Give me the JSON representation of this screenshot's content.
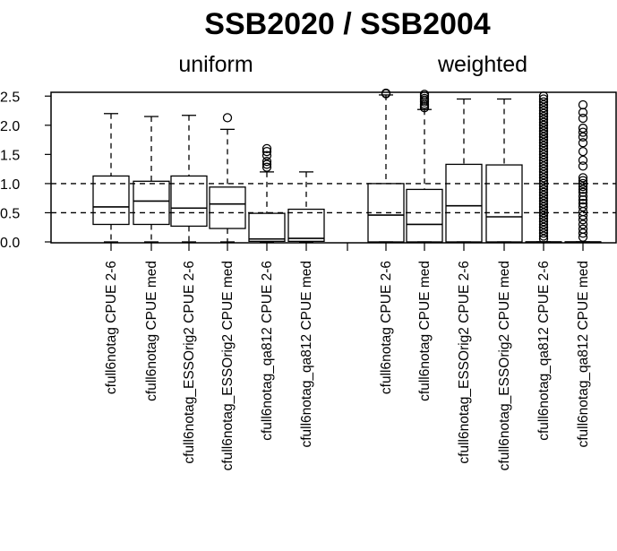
{
  "chart_data": {
    "type": "box",
    "title": "SSB2020 / SSB2004",
    "group_labels": [
      "uniform",
      "weighted"
    ],
    "y_ticks": [
      "0.0",
      "0.5",
      "1.0",
      "1.5",
      "2.0",
      "2.5"
    ],
    "ylim": [
      0,
      2.55
    ],
    "reference_lines": [
      0.5,
      1.0
    ],
    "grid": false,
    "boxes": [
      {
        "group": "uniform",
        "label": "cfull6notag CPUE 2-6",
        "min": 0.0,
        "q1": 0.3,
        "median": 0.6,
        "q3": 1.13,
        "max": 2.2,
        "outliers": []
      },
      {
        "group": "uniform",
        "label": "cfull6notag CPUE med",
        "min": 0.0,
        "q1": 0.3,
        "median": 0.7,
        "q3": 1.04,
        "max": 2.15,
        "outliers": []
      },
      {
        "group": "uniform",
        "label": "cfull6notag_ESSOrig2 CPUE 2-6",
        "min": 0.0,
        "q1": 0.27,
        "median": 0.58,
        "q3": 1.13,
        "max": 2.17,
        "outliers": []
      },
      {
        "group": "uniform",
        "label": "cfull6notag_ESSOrig2 CPUE med",
        "min": 0.0,
        "q1": 0.23,
        "median": 0.65,
        "q3": 0.94,
        "max": 1.93,
        "outliers": [
          2.13
        ]
      },
      {
        "group": "uniform",
        "label": "cfull6notag_qa812 CPUE 2-6",
        "min": 0.0,
        "q1": 0.01,
        "median": 0.05,
        "q3": 0.49,
        "max": 1.2,
        "outliers": [
          1.28,
          1.33,
          1.38,
          1.48,
          1.55,
          1.6
        ]
      },
      {
        "group": "uniform",
        "label": "cfull6notag_qa812 CPUE med",
        "min": 0.0,
        "q1": 0.01,
        "median": 0.06,
        "q3": 0.56,
        "max": 1.2,
        "outliers": []
      },
      {
        "group": "weighted",
        "label": "cfull6notag CPUE 2-6",
        "min": 0.0,
        "q1": 0.0,
        "median": 0.46,
        "q3": 1.0,
        "max": 2.52,
        "outliers": [
          2.54,
          2.55
        ]
      },
      {
        "group": "weighted",
        "label": "cfull6notag CPUE med",
        "min": 0.0,
        "q1": 0.0,
        "median": 0.3,
        "q3": 0.9,
        "max": 2.27,
        "outliers": [
          2.3,
          2.33,
          2.36,
          2.4,
          2.43,
          2.46,
          2.5,
          2.53
        ]
      },
      {
        "group": "weighted",
        "label": "cfull6notag_ESSOrig2 CPUE 2-6",
        "min": 0.0,
        "q1": 0.0,
        "median": 0.62,
        "q3": 1.33,
        "max": 2.45,
        "outliers": []
      },
      {
        "group": "weighted",
        "label": "cfull6notag_ESSOrig2 CPUE med",
        "min": 0.0,
        "q1": 0.0,
        "median": 0.43,
        "q3": 1.32,
        "max": 2.45,
        "outliers": []
      },
      {
        "group": "weighted",
        "label": "cfull6notag_qa812 CPUE 2-6",
        "min": 0.0,
        "q1": 0.0,
        "median": 0.0,
        "q3": 0.0,
        "max": 0.0,
        "outliers": [
          0.05,
          0.1,
          0.15,
          0.2,
          0.25,
          0.3,
          0.35,
          0.4,
          0.45,
          0.5,
          0.55,
          0.6,
          0.65,
          0.7,
          0.75,
          0.8,
          0.85,
          0.9,
          0.95,
          1.0,
          1.05,
          1.1,
          1.15,
          1.2,
          1.25,
          1.3,
          1.35,
          1.4,
          1.45,
          1.5,
          1.55,
          1.6,
          1.65,
          1.7,
          1.75,
          1.8,
          1.85,
          1.9,
          1.95,
          2.0,
          2.05,
          2.1,
          2.15,
          2.2,
          2.25,
          2.3,
          2.35,
          2.4,
          2.45,
          2.5
        ]
      },
      {
        "group": "weighted",
        "label": "cfull6notag_qa812 CPUE med",
        "min": 0.0,
        "q1": 0.0,
        "median": 0.0,
        "q3": 0.0,
        "max": 0.0,
        "outliers": [
          0.08,
          0.15,
          0.22,
          0.3,
          0.38,
          0.45,
          0.52,
          0.6,
          0.66,
          0.72,
          0.78,
          0.85,
          0.9,
          0.95,
          1.0,
          1.05,
          1.1,
          1.3,
          1.4,
          1.55,
          1.7,
          1.8,
          1.88,
          1.95,
          2.12,
          2.22,
          2.35
        ]
      }
    ]
  }
}
